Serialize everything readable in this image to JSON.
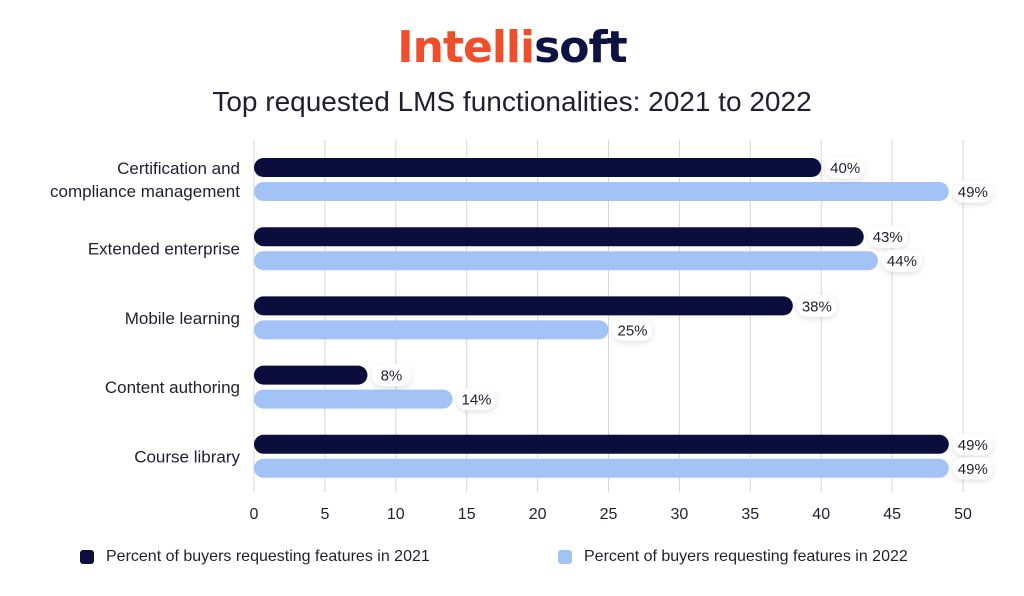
{
  "brand": {
    "part1": "Intelli",
    "part2": "soft"
  },
  "chart_data": {
    "type": "bar",
    "orientation": "horizontal",
    "title": "Top requested LMS functionalities: 2021 to 2022",
    "categories": [
      [
        "Certification and",
        "compliance management"
      ],
      [
        "Extended enterprise"
      ],
      [
        "Mobile learning"
      ],
      [
        "Content authoring"
      ],
      [
        "Course library"
      ]
    ],
    "series": [
      {
        "name": "Percent of buyers requesting features in 2021",
        "values": [
          40,
          43,
          38,
          8,
          49
        ],
        "labels": [
          "40%",
          "43%",
          "38%",
          "8%",
          "49%"
        ],
        "color": "#0b0e3d"
      },
      {
        "name": "Percent of buyers requesting features in 2022",
        "values": [
          49,
          44,
          25,
          14,
          49
        ],
        "labels": [
          "49%",
          "44%",
          "25%",
          "14%",
          "49%"
        ],
        "color": "#a3c2f5"
      }
    ],
    "xlim": [
      0,
      50
    ],
    "xticks": [
      "0",
      "5",
      "10",
      "15",
      "20",
      "25",
      "30",
      "35",
      "40",
      "45",
      "50"
    ],
    "grid": true,
    "legend_position": "bottom"
  }
}
